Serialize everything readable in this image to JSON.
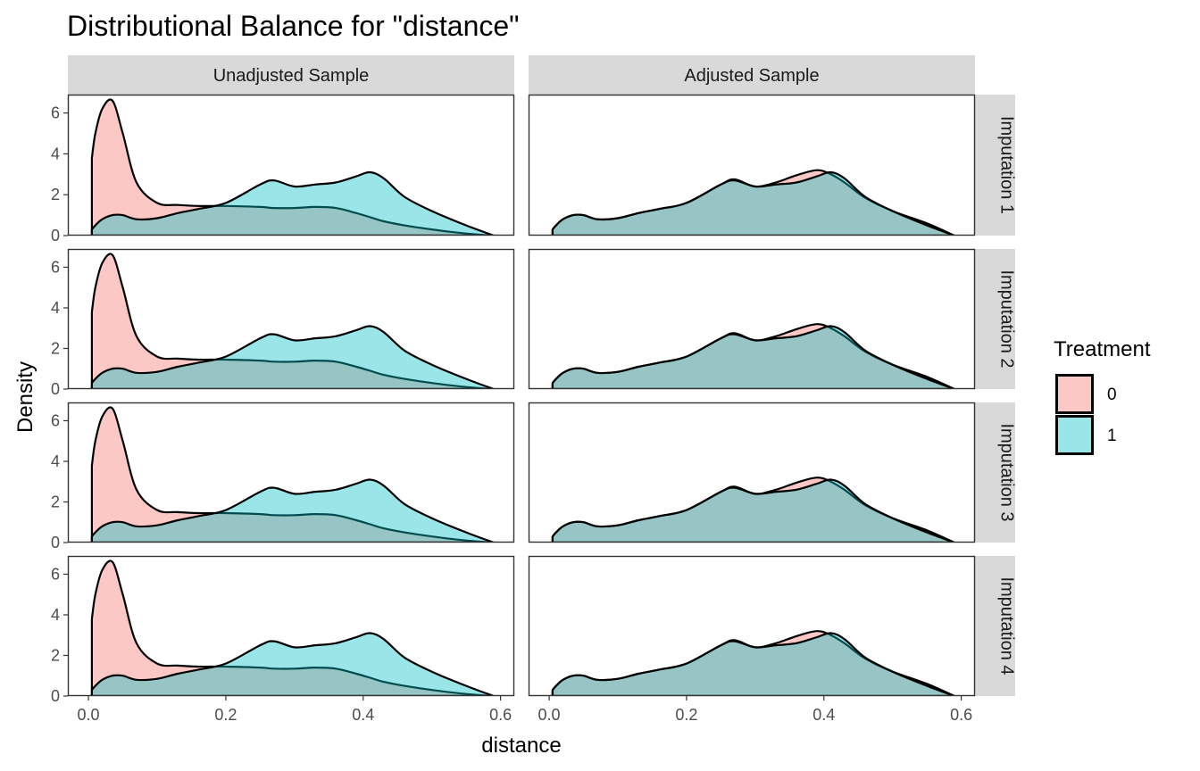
{
  "chart_data": {
    "type": "area",
    "title": "Distributional Balance for \"distance\"",
    "xlabel": "distance",
    "ylabel": "Density",
    "xlim": [
      -0.03,
      0.62
    ],
    "ylim": [
      0,
      6.9
    ],
    "x_ticks": [
      0.0,
      0.2,
      0.4,
      0.6
    ],
    "x_tick_labels": [
      "0.0",
      "0.2",
      "0.4",
      "0.6"
    ],
    "y_ticks": [
      0,
      2,
      4,
      6
    ],
    "y_tick_labels": [
      "0",
      "2",
      "4",
      "6"
    ],
    "columns": [
      "Unadjusted Sample",
      "Adjusted Sample"
    ],
    "rows": [
      "Imputation 1",
      "Imputation 2",
      "Imputation 3",
      "Imputation 4"
    ],
    "legend": {
      "title": "Treatment",
      "position": "right",
      "entries": [
        {
          "label": "0",
          "color": "#F8766D"
        },
        {
          "label": "1",
          "color": "#00BFC4"
        }
      ]
    },
    "x": [
      0.005,
      0.01,
      0.02,
      0.035,
      0.05,
      0.07,
      0.1,
      0.13,
      0.16,
      0.2,
      0.25,
      0.27,
      0.3,
      0.33,
      0.36,
      0.39,
      0.41,
      0.43,
      0.46,
      0.5,
      0.55,
      0.59
    ],
    "series": [
      {
        "name": "0",
        "facet": "Unadjusted Sample",
        "values": [
          3.8,
          5.0,
          6.2,
          6.6,
          5.0,
          2.6,
          1.6,
          1.5,
          1.45,
          1.45,
          1.4,
          1.35,
          1.35,
          1.4,
          1.35,
          1.1,
          0.9,
          0.7,
          0.5,
          0.3,
          0.1,
          0.0
        ]
      },
      {
        "name": "1",
        "facet": "Unadjusted Sample",
        "values": [
          0.3,
          0.5,
          0.8,
          1.0,
          1.0,
          0.8,
          0.85,
          1.1,
          1.3,
          1.6,
          2.5,
          2.7,
          2.4,
          2.5,
          2.6,
          2.9,
          3.1,
          2.8,
          1.9,
          1.2,
          0.5,
          0.0
        ]
      },
      {
        "name": "0",
        "facet": "Adjusted Sample",
        "values": [
          0.3,
          0.5,
          0.8,
          1.0,
          1.0,
          0.8,
          0.85,
          1.1,
          1.3,
          1.6,
          2.5,
          2.75,
          2.4,
          2.6,
          2.95,
          3.2,
          3.0,
          2.6,
          1.85,
          1.2,
          0.6,
          0.0
        ]
      },
      {
        "name": "1",
        "facet": "Adjusted Sample",
        "values": [
          0.3,
          0.5,
          0.8,
          1.0,
          1.0,
          0.8,
          0.85,
          1.1,
          1.3,
          1.6,
          2.5,
          2.7,
          2.4,
          2.5,
          2.6,
          2.9,
          3.1,
          2.8,
          1.9,
          1.2,
          0.5,
          0.0
        ]
      }
    ]
  }
}
